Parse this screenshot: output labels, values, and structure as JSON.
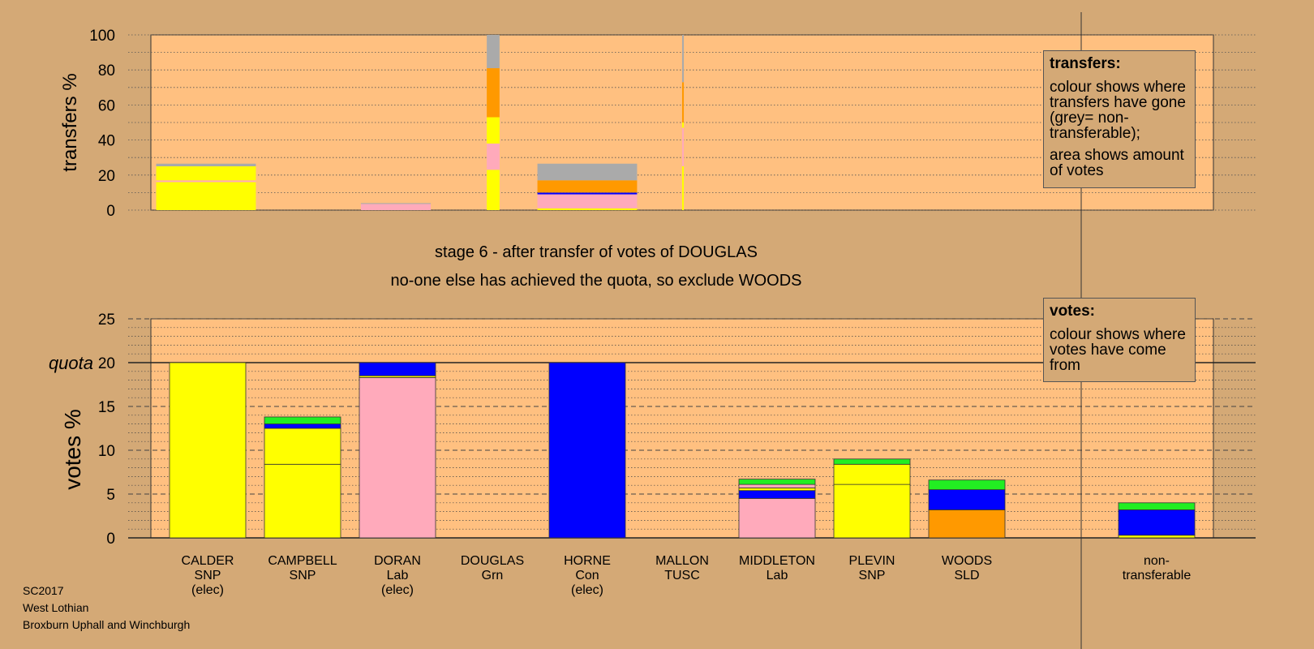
{
  "colors": {
    "background": "#d4a976",
    "plot_bg": "#ffc080",
    "SNP": "#ffff00",
    "Lab": "#ffaabb",
    "Con": "#0000ff",
    "SLD": "#ff9900",
    "Grn": "#22ee22",
    "TUSC": "#ff0000",
    "nontransferable": "#aaaaaa"
  },
  "stage": {
    "line1": "stage 6 - after transfer of votes of DOUGLAS",
    "line2": "no-one else has achieved the quota, so exclude WOODS"
  },
  "legend_transfers": {
    "title": "transfers:",
    "p1": "colour shows where transfers have gone (grey= non-transferable);",
    "p2": "area shows amount of votes"
  },
  "legend_votes": {
    "title": "votes:",
    "p1": "colour shows where votes have come from"
  },
  "footer": {
    "line1": "SC2017",
    "line2": "West Lothian",
    "line3": "Broxburn Uphall and Winchburgh"
  },
  "chart_data": [
    {
      "type": "bar",
      "name": "transfers",
      "ylabel": "transfers %",
      "ylim": [
        0,
        100
      ],
      "yticks": [
        "0",
        "20",
        "40",
        "60",
        "80",
        "100"
      ],
      "description_note": "",
      "bars": [
        {
          "candidate": "CALDER",
          "share": 0.585,
          "segments": [
            {
              "party": "SNP",
              "value": 16
            },
            {
              "party": "Lab",
              "value": 1
            },
            {
              "party": "SNP",
              "value": 8
            },
            {
              "party": "nontransferable",
              "value": 1.5
            }
          ]
        },
        {
          "candidate": "CAMPBELL",
          "share": 0,
          "segments": []
        },
        {
          "candidate": "DORAN",
          "share": 0.41,
          "segments": [
            {
              "party": "Lab",
              "value": 3.5
            },
            {
              "party": "nontransferable",
              "value": 0.5
            }
          ]
        },
        {
          "candidate": "DOUGLAS",
          "share": 0.075,
          "segments": [
            {
              "party": "SNP",
              "value": 23
            },
            {
              "party": "Lab",
              "value": 15
            },
            {
              "party": "SNP",
              "value": 15
            },
            {
              "party": "SLD",
              "value": 28
            },
            {
              "party": "nontransferable",
              "value": 19
            }
          ]
        },
        {
          "candidate": "HORNE",
          "share": 0.585,
          "segments": [
            {
              "party": "SNP",
              "value": 1
            },
            {
              "party": "Lab",
              "value": 8
            },
            {
              "party": "Con",
              "value": 1
            },
            {
              "party": "SLD",
              "value": 7
            },
            {
              "party": "nontransferable",
              "value": 9.5
            }
          ]
        },
        {
          "candidate": "MALLON",
          "share": 0.01,
          "segments": [
            {
              "party": "SNP",
              "value": 25
            },
            {
              "party": "Lab",
              "value": 22
            },
            {
              "party": "SNP",
              "value": 3
            },
            {
              "party": "SLD",
              "value": 23
            },
            {
              "party": "nontransferable",
              "value": 27
            }
          ]
        }
      ]
    },
    {
      "type": "bar",
      "name": "votes",
      "ylabel": "votes %",
      "ylim": [
        0,
        25
      ],
      "yticks": [
        "0",
        "5",
        "10",
        "15",
        "20",
        "25"
      ],
      "quota_label": "quota",
      "quota": 20,
      "candidates": [
        {
          "label": [
            "CALDER",
            "SNP",
            "(elec)"
          ],
          "segments": [
            {
              "party": "SNP",
              "value": 20
            }
          ]
        },
        {
          "label": [
            "CAMPBELL",
            "SNP"
          ],
          "segments": [
            {
              "party": "SNP",
              "value": 8.4
            },
            {
              "party": "SNP",
              "value": 4.1
            },
            {
              "party": "Con",
              "value": 0.5
            },
            {
              "party": "Grn",
              "value": 0.8
            }
          ]
        },
        {
          "label": [
            "DORAN",
            "Lab",
            "(elec)"
          ],
          "segments": [
            {
              "party": "Lab",
              "value": 18.3
            },
            {
              "party": "SNP",
              "value": 0.2
            },
            {
              "party": "Con",
              "value": 1.5
            }
          ]
        },
        {
          "label": [
            "DOUGLAS",
            "Grn"
          ],
          "segments": []
        },
        {
          "label": [
            "HORNE",
            "Con",
            "(elec)"
          ],
          "segments": [
            {
              "party": "Con",
              "value": 20
            }
          ]
        },
        {
          "label": [
            "MALLON",
            "TUSC"
          ],
          "segments": []
        },
        {
          "label": [
            "MIDDLETON",
            "Lab"
          ],
          "segments": [
            {
              "party": "Lab",
              "value": 4.5
            },
            {
              "party": "Con",
              "value": 0.9
            },
            {
              "party": "SNP",
              "value": 0.3
            },
            {
              "party": "Lab",
              "value": 0.4
            },
            {
              "party": "Grn",
              "value": 0.6
            }
          ]
        },
        {
          "label": [
            "PLEVIN",
            "SNP"
          ],
          "segments": [
            {
              "party": "SNP",
              "value": 6.1
            },
            {
              "party": "SNP",
              "value": 2.3
            },
            {
              "party": "Grn",
              "value": 0.6
            }
          ]
        },
        {
          "label": [
            "WOODS",
            "SLD"
          ],
          "segments": [
            {
              "party": "SLD",
              "value": 3.2
            },
            {
              "party": "Con",
              "value": 2.3
            },
            {
              "party": "Grn",
              "value": 1.1
            }
          ]
        },
        {
          "label": [
            "non-",
            "transferable"
          ],
          "segments": [
            {
              "party": "SNP",
              "value": 0.3
            },
            {
              "party": "Con",
              "value": 2.9
            },
            {
              "party": "Grn",
              "value": 0.8
            }
          ]
        }
      ]
    }
  ]
}
